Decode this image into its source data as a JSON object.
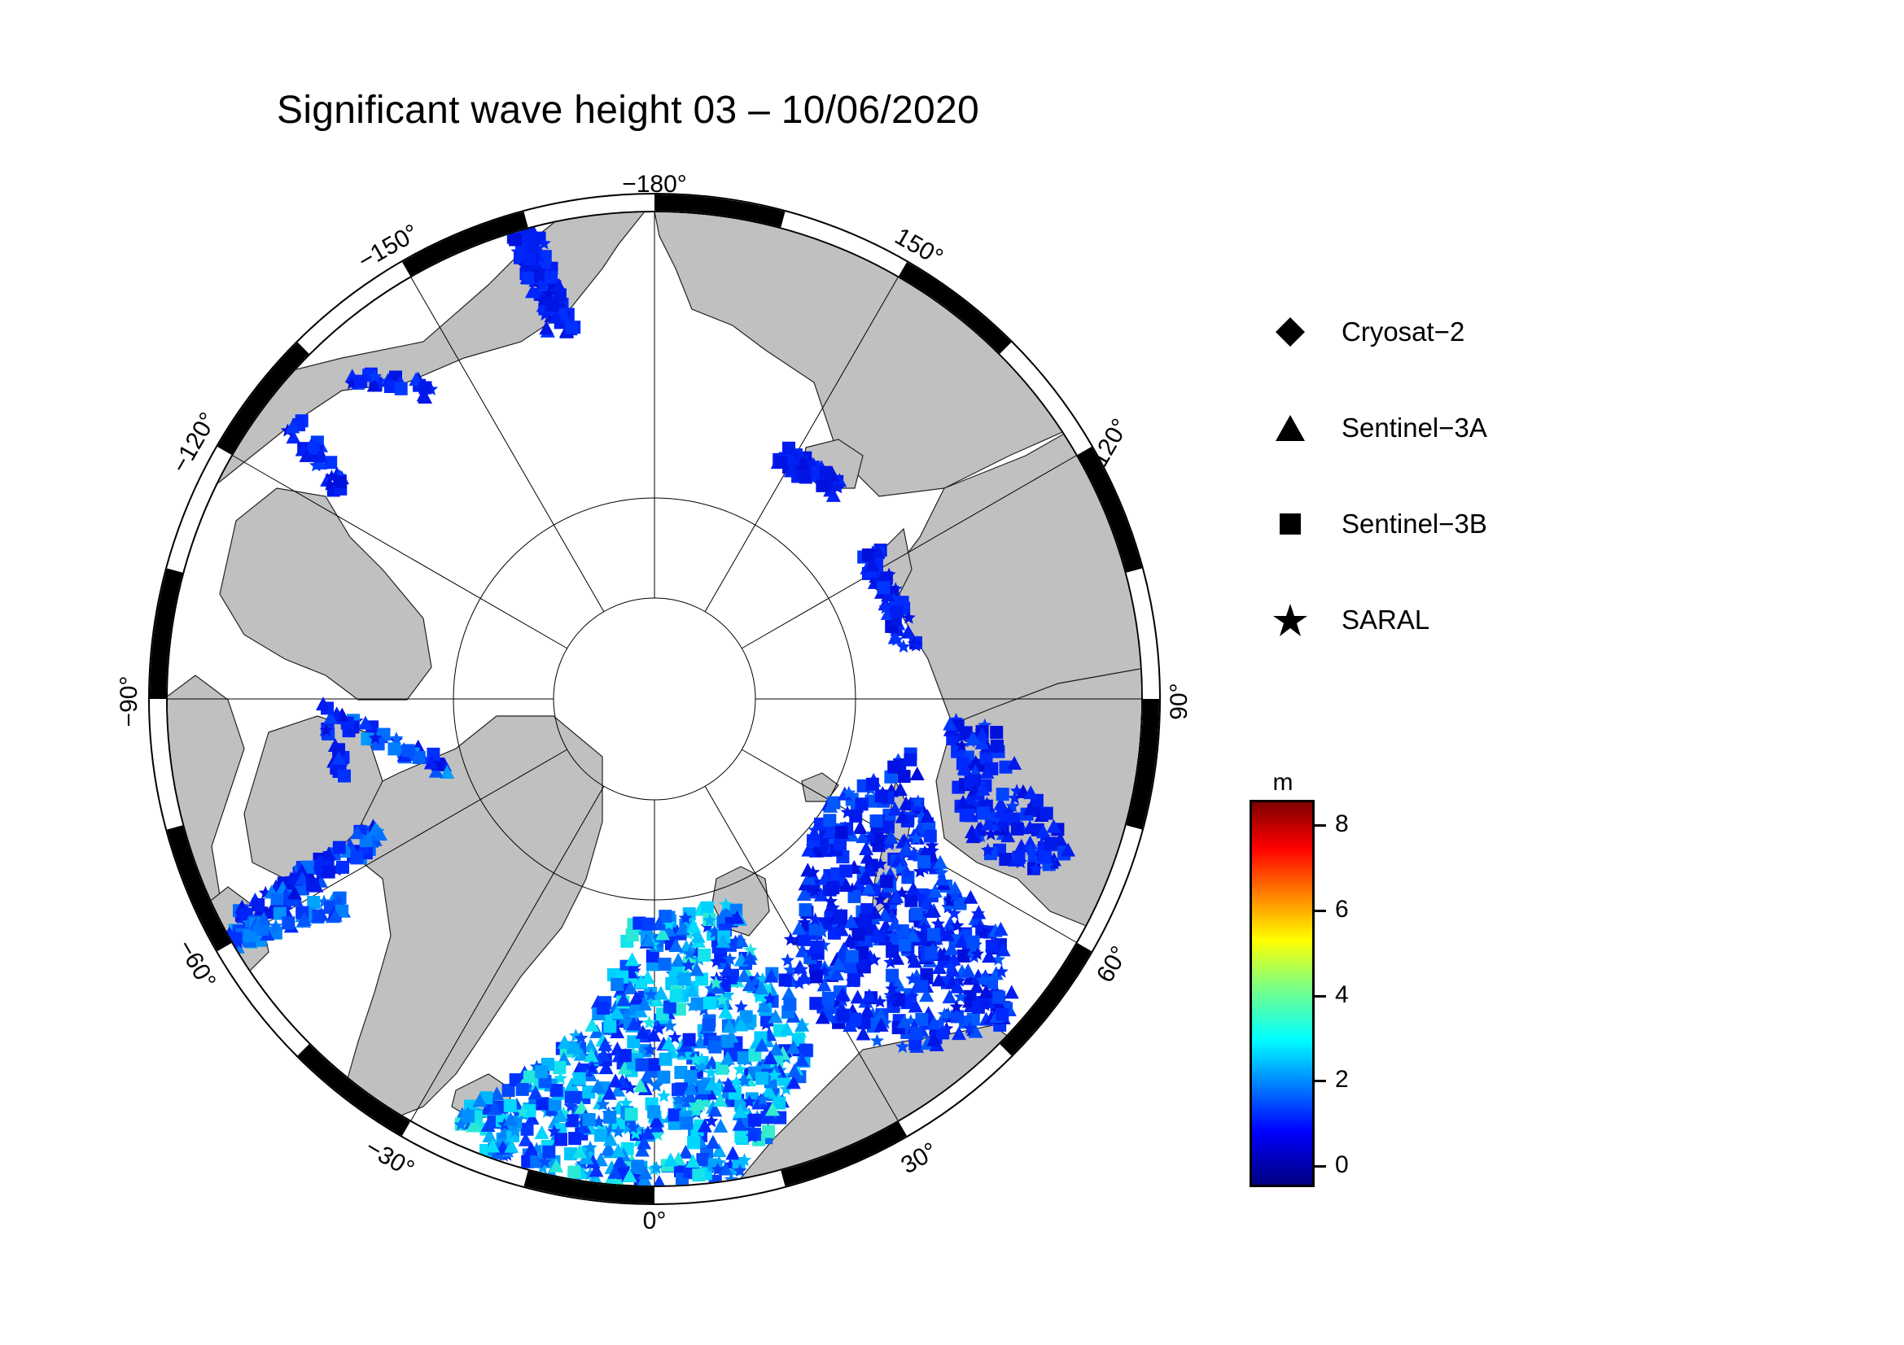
{
  "title": "Significant wave height 03 – 10/06/2020",
  "map": {
    "projection": "north polar stereographic",
    "lon_labels": [
      "−180°",
      "150°",
      "120°",
      "90°",
      "60°",
      "30°",
      "0°",
      "−30°",
      "−60°",
      "−90°",
      "−120°",
      "−150°"
    ],
    "land_color": "#c0c0c0",
    "ocean_color": "#ffffff"
  },
  "legend": {
    "items": [
      {
        "label": "Cryosat−2",
        "symbol": "diamond-icon"
      },
      {
        "label": "Sentinel−3A",
        "symbol": "triangle-icon"
      },
      {
        "label": "Sentinel−3B",
        "symbol": "square-icon"
      },
      {
        "label": "SARAL",
        "symbol": "star-icon"
      }
    ]
  },
  "colorbar": {
    "unit": "m",
    "ticks": [
      "0",
      "2",
      "4",
      "6",
      "8"
    ],
    "colormap": "jet"
  }
}
